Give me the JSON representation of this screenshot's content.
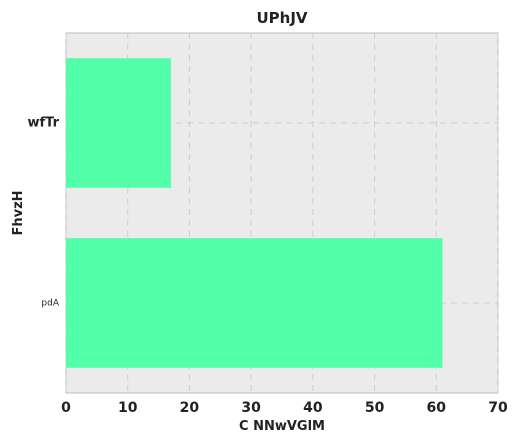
{
  "chart_data": {
    "type": "bar",
    "orientation": "horizontal",
    "title": "UPhJV",
    "xlabel": "C NNwVGlM",
    "ylabel": "FhvzH",
    "categories": [
      "wfTr",
      "pdA"
    ],
    "values": [
      17,
      61
    ],
    "xlim": [
      0,
      70
    ],
    "xticks": [
      0,
      10,
      20,
      30,
      40,
      50,
      60,
      70
    ],
    "grid": true,
    "bar_color": "#52ffa8",
    "background_color": "#ebebeb"
  }
}
